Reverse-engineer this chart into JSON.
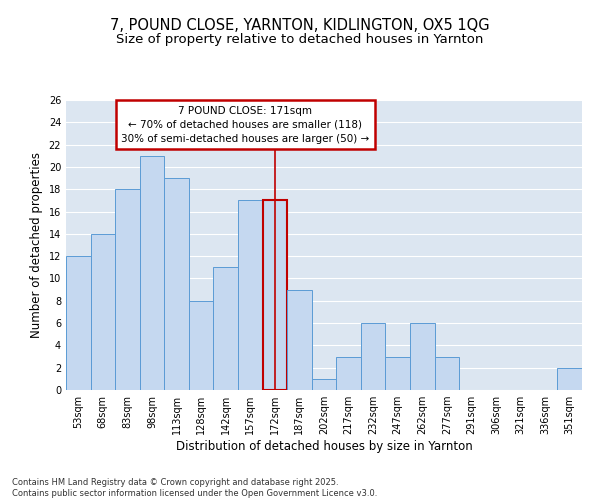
{
  "title_line1": "7, POUND CLOSE, YARNTON, KIDLINGTON, OX5 1QG",
  "title_line2": "Size of property relative to detached houses in Yarnton",
  "xlabel": "Distribution of detached houses by size in Yarnton",
  "ylabel": "Number of detached properties",
  "categories": [
    "53sqm",
    "68sqm",
    "83sqm",
    "98sqm",
    "113sqm",
    "128sqm",
    "142sqm",
    "157sqm",
    "172sqm",
    "187sqm",
    "202sqm",
    "217sqm",
    "232sqm",
    "247sqm",
    "262sqm",
    "277sqm",
    "291sqm",
    "306sqm",
    "321sqm",
    "336sqm",
    "351sqm"
  ],
  "values": [
    12,
    14,
    18,
    21,
    19,
    8,
    11,
    17,
    17,
    9,
    1,
    3,
    6,
    3,
    6,
    3,
    0,
    0,
    0,
    0,
    2
  ],
  "bar_color": "#C5D8F0",
  "bar_edge_color": "#5B9BD5",
  "highlight_index": 8,
  "highlight_line_color": "#C00000",
  "annotation_text": "7 POUND CLOSE: 171sqm\n← 70% of detached houses are smaller (118)\n30% of semi-detached houses are larger (50) →",
  "annotation_box_color": "#C00000",
  "annotation_bg_color": "#FFFFFF",
  "ylim": [
    0,
    26
  ],
  "yticks": [
    0,
    2,
    4,
    6,
    8,
    10,
    12,
    14,
    16,
    18,
    20,
    22,
    24,
    26
  ],
  "grid_color": "#FFFFFF",
  "bg_color": "#DCE6F1",
  "footer_text": "Contains HM Land Registry data © Crown copyright and database right 2025.\nContains public sector information licensed under the Open Government Licence v3.0.",
  "title_fontsize": 10.5,
  "subtitle_fontsize": 9.5,
  "axis_label_fontsize": 8.5,
  "tick_fontsize": 7,
  "annotation_fontsize": 7.5,
  "footer_fontsize": 6
}
